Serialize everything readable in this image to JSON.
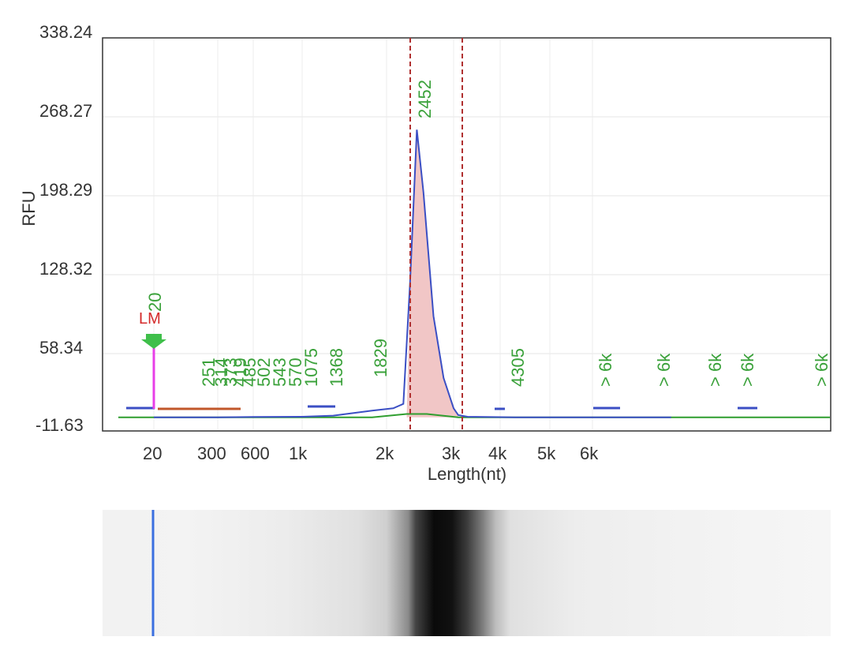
{
  "chart_data": {
    "type": "line",
    "title": "",
    "xlabel": "Length(nt)",
    "ylabel": "RFU",
    "y_ticks": [
      "338.24",
      "268.27",
      "198.29",
      "128.32",
      "58.34",
      "-11.63"
    ],
    "ylim": [
      -11.63,
      338.24
    ],
    "x_ticks": [
      "20",
      "300",
      "600",
      "1k",
      "2k",
      "3k",
      "4k",
      "5k",
      "6k"
    ],
    "x_tick_values_nt": [
      20,
      300,
      600,
      1000,
      2000,
      3000,
      4000,
      5000,
      6000
    ],
    "grid": true,
    "series": [
      {
        "name": "",
        "color": "#3b4fc4",
        "x": [
          20,
          300,
          600,
          1000,
          1368,
          1829,
          2100,
          2250,
          2350,
          2452,
          2550,
          2700,
          2850,
          3000,
          3100,
          3300,
          4305,
          5000,
          6000,
          7000
        ],
        "y": [
          0,
          0,
          0.3,
          0.5,
          1.5,
          6,
          8,
          12,
          120,
          256,
          200,
          90,
          35,
          8,
          2,
          0.5,
          0,
          0,
          0,
          0
        ]
      }
    ],
    "baseline_color": "#2f9e2f",
    "fill_color": "#f1c6c6",
    "peak_boundaries_nt": [
      2300,
      3100
    ],
    "peak_labels": [
      "1829",
      "2452",
      "4305",
      "> 6k",
      "> 6k",
      "> 6k",
      "> 6k",
      "> 6k"
    ],
    "cluster_labels": [
      "251",
      "314",
      "373",
      "419",
      "485",
      "502",
      "543",
      "570",
      "1075",
      "1368"
    ],
    "marker": {
      "label": "LM",
      "value_label": "20",
      "color": "#d42a2a",
      "line_color": "#e83ee8",
      "arrow_color": "#3fbf4a",
      "y": 58.34
    },
    "gel_lane": {
      "ladder_line_color": "#3a6fe0"
    }
  }
}
